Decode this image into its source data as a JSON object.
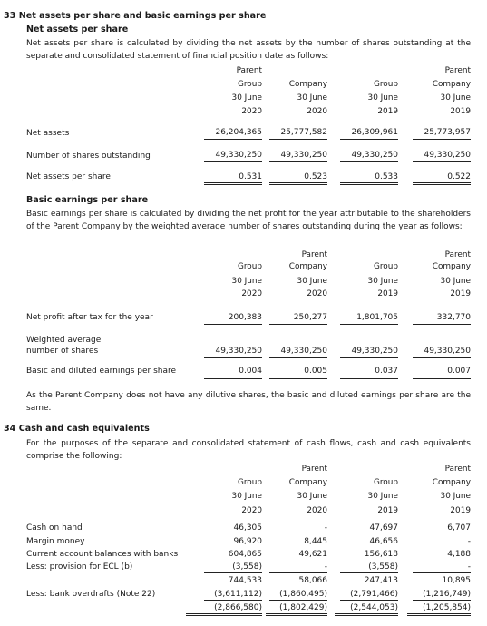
{
  "s33": {
    "title": "33 Net assets per share and basic earnings per share",
    "nav_title": "Net assets per share",
    "nav_intro": "Net assets per share is calculated by dividing the net assets by the number of shares outstanding at the separate and consolidated statement of financial position date as follows:",
    "columns": [
      {
        "l1": "",
        "l2": "Group",
        "l3": "30 June",
        "l4": "2020"
      },
      {
        "l1": "Parent",
        "l2": "Company",
        "l3": "30 June",
        "l4": "2020"
      },
      {
        "l1": "",
        "l2": "Group",
        "l3": "30 June",
        "l4": "2019"
      },
      {
        "l1": "Parent",
        "l2": "Company",
        "l3": "30 June",
        "l4": "2019"
      }
    ],
    "nav_rows": [
      {
        "label": "Net assets",
        "values": [
          "26,204,365",
          "25,777,582",
          "26,309,961",
          "25,773,957"
        ]
      },
      {
        "label": "Number of shares outstanding",
        "values": [
          "49,330,250",
          "49,330,250",
          "49,330,250",
          "49,330,250"
        ]
      },
      {
        "label": "Net assets per share",
        "values": [
          "0.531",
          "0.523",
          "0.533",
          "0.522"
        ]
      }
    ],
    "eps_title": "Basic earnings per share",
    "eps_intro": "Basic earnings per share is calculated by dividing the net profit for the year attributable to the shareholders of the Parent Company by the weighted average number of shares outstanding during the year as follows:",
    "eps_rows": [
      {
        "label": "Net profit after tax for the year",
        "values": [
          "200,383",
          "250,277",
          "1,801,705",
          "332,770"
        ]
      },
      {
        "label": "Weighted average",
        "label2": "number of shares",
        "values": [
          "49,330,250",
          "49,330,250",
          "49,330,250",
          "49,330,250"
        ]
      },
      {
        "label": "Basic and diluted earnings per share",
        "values": [
          "0.004",
          "0.005",
          "0.037",
          "0.007"
        ]
      }
    ],
    "eps_note": "As the Parent Company does not have any dilutive shares, the basic and diluted earnings per share are the same."
  },
  "s34": {
    "title": "34 Cash and cash equivalents",
    "intro": "For the purposes of the separate and consolidated statement of cash flows, cash and cash equivalents comprise the following:",
    "rows": [
      {
        "label": "Cash on hand",
        "values": [
          "46,305",
          "-",
          "47,697",
          "6,707"
        ]
      },
      {
        "label": "Margin money",
        "values": [
          "96,920",
          "8,445",
          "46,656",
          "-"
        ]
      },
      {
        "label": "Current account balances with banks",
        "values": [
          "604,865",
          "49,621",
          "156,618",
          "4,188"
        ]
      },
      {
        "label": "Less: provision for ECL (b)",
        "values": [
          "(3,558)",
          "-",
          "(3,558)",
          "-"
        ]
      },
      {
        "label": "",
        "values": [
          "744,533",
          "58,066",
          "247,413",
          "10,895"
        ]
      },
      {
        "label": "Less: bank overdrafts (Note 22)",
        "values": [
          "(3,611,112)",
          "(1,860,495)",
          "(2,791,466)",
          "(1,216,749)"
        ]
      },
      {
        "label": "",
        "values": [
          "(2,866,580)",
          "(1,802,429)",
          "(2,544,053)",
          "(1,205,854)"
        ]
      }
    ]
  }
}
